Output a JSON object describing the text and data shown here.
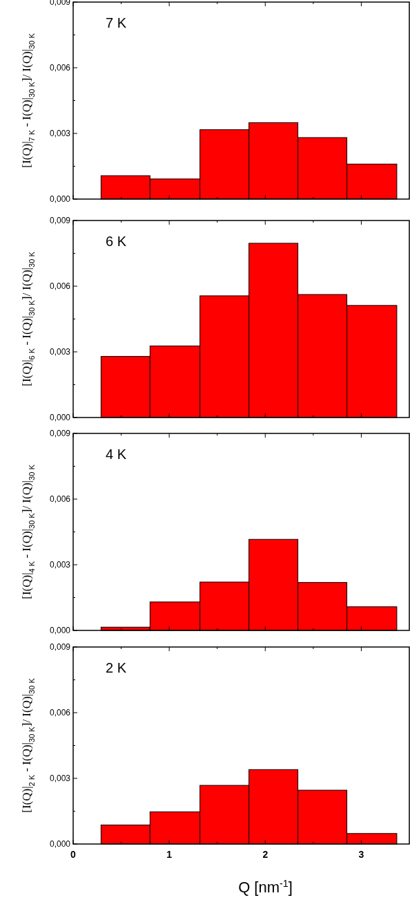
{
  "chart_data": [
    {
      "type": "histogram",
      "bins": [
        0.29,
        0.8,
        1.32,
        1.83,
        2.34,
        2.85,
        3.37
      ],
      "values": [
        0.00107,
        0.00092,
        0.00317,
        0.00349,
        0.00281,
        0.0016
      ],
      "color": "#ff0000",
      "ylabel": "[I(Q)|$_{7 K}$ - I(Q)|$_{30 K}$]/ I(Q)|$_{30 K}$",
      "annotations": [
        "7 K"
      ],
      "xlim": [
        0,
        3.5
      ],
      "xticks": [
        0,
        {
          "value": 0.5,
          "label": null
        },
        1,
        {
          "value": 1.5,
          "label": null
        },
        2,
        {
          "value": 2.5,
          "label": null
        },
        3
      ],
      "ylim": [
        0,
        0.009
      ],
      "yticks": [
        {
          "value": 0,
          "label": "0,000"
        },
        {
          "value": 0.0015,
          "label": null
        },
        {
          "value": 0.003,
          "label": "0,003"
        },
        {
          "value": 0.0045,
          "label": null
        },
        {
          "value": 0.006,
          "label": "0,006"
        },
        {
          "value": 0.0075,
          "label": null
        },
        {
          "value": 0.009,
          "label": "0,009"
        }
      ],
      "tick_labels": "y"
    },
    {
      "type": "histogram",
      "bins": [
        0.29,
        0.8,
        1.32,
        1.83,
        2.34,
        2.85,
        3.37
      ],
      "values": [
        0.00279,
        0.00327,
        0.00556,
        0.00796,
        0.00562,
        0.00512
      ],
      "color": "#ff0000",
      "ylabel": "[I(Q)|$_{6 K}$ - I(Q)|$_{30 K}$]/ I(Q)|$_{30 K}$",
      "annotations": [
        "6 K"
      ],
      "xlim": [
        0,
        3.5
      ],
      "xticks": [
        0,
        {
          "value": 0.5,
          "label": null
        },
        1,
        {
          "value": 1.5,
          "label": null
        },
        2,
        {
          "value": 2.5,
          "label": null
        },
        3
      ],
      "ylim": [
        0,
        0.009
      ],
      "yticks": [
        {
          "value": 0,
          "label": "0,000"
        },
        {
          "value": 0.0015,
          "label": null
        },
        {
          "value": 0.003,
          "label": "0,003"
        },
        {
          "value": 0.0045,
          "label": null
        },
        {
          "value": 0.006,
          "label": "0,006"
        },
        {
          "value": 0.0075,
          "label": null
        },
        {
          "value": 0.009,
          "label": "0,009"
        }
      ],
      "tick_labels": "y"
    },
    {
      "type": "histogram",
      "bins": [
        0.29,
        0.8,
        1.32,
        1.83,
        2.34,
        2.85,
        3.37
      ],
      "values": [
        0.00015,
        0.0013,
        0.00221,
        0.00416,
        0.00219,
        0.00108
      ],
      "color": "#ff0000",
      "ylabel": "[I(Q)|$_{4 K}$ - I(Q)|$_{30 K}$]/ I(Q)|$_{30 K}$",
      "annotations": [
        "4 K"
      ],
      "xlim": [
        0,
        3.5
      ],
      "xticks": [
        0,
        {
          "value": 0.5,
          "label": null
        },
        1,
        {
          "value": 1.5,
          "label": null
        },
        2,
        {
          "value": 2.5,
          "label": null
        },
        3
      ],
      "ylim": [
        0,
        0.009
      ],
      "yticks": [
        {
          "value": 0,
          "label": "0,000"
        },
        {
          "value": 0.0015,
          "label": null
        },
        {
          "value": 0.003,
          "label": "0,003"
        },
        {
          "value": 0.0045,
          "label": null
        },
        {
          "value": 0.006,
          "label": "0,006"
        },
        {
          "value": 0.0075,
          "label": null
        },
        {
          "value": 0.009,
          "label": "0,009"
        }
      ],
      "tick_labels": "y"
    },
    {
      "type": "histogram",
      "bins": [
        0.29,
        0.8,
        1.32,
        1.83,
        2.34,
        2.85,
        3.37
      ],
      "values": [
        0.00087,
        0.00147,
        0.00268,
        0.0034,
        0.00246,
        0.00048
      ],
      "color": "#ff0000",
      "ylabel": "[I(Q)|$_{2 K}$ - I(Q)|$_{30 K}$]/ I(Q)|$_{30 K}$",
      "xlabel": "Q [nm$^{-1}$]",
      "annotations": [
        "2 K"
      ],
      "xlim": [
        0,
        3.5
      ],
      "xticks": [
        0,
        {
          "value": 0.5,
          "label": null
        },
        1,
        {
          "value": 1.5,
          "label": null
        },
        2,
        {
          "value": 2.5,
          "label": null
        },
        3
      ],
      "ylim": [
        0,
        0.009
      ],
      "yticks": [
        {
          "value": 0,
          "label": "0,000"
        },
        {
          "value": 0.0015,
          "label": null
        },
        {
          "value": 0.003,
          "label": "0,003"
        },
        {
          "value": 0.0045,
          "label": null
        },
        {
          "value": 0.006,
          "label": "0,006"
        },
        {
          "value": 0.0075,
          "label": null
        },
        {
          "value": 0.009,
          "label": "0,009"
        }
      ]
    }
  ]
}
